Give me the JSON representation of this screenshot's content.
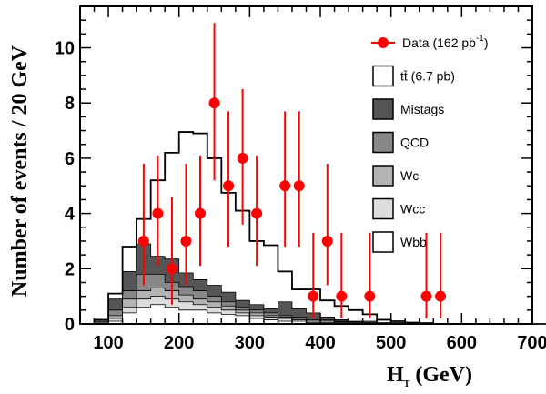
{
  "chart_data": {
    "type": "bar",
    "xlabel": "H",
    "xlabel_sub": "T",
    "xlabel_unit": " (GeV)",
    "ylabel": "Number of events / 20 GeV",
    "xlim": [
      60,
      700
    ],
    "ylim": [
      0,
      11.5
    ],
    "xticks": [
      100,
      200,
      300,
      400,
      500,
      600,
      700
    ],
    "yticks": [
      0,
      2,
      4,
      6,
      8,
      10
    ],
    "bin_width": 20,
    "legend_position": "top-right",
    "legend": [
      {
        "key": "data",
        "label": "Data (162 pb",
        "sup": "-1",
        "tail": ")"
      },
      {
        "key": "ttbar",
        "label": "tt̄ (6.7 pb)"
      },
      {
        "key": "mistags",
        "label": "Mistags"
      },
      {
        "key": "qcd",
        "label": "QCD"
      },
      {
        "key": "wc",
        "label": "Wc"
      },
      {
        "key": "wcc",
        "label": "Wcc"
      },
      {
        "key": "wbb",
        "label": "Wbb"
      }
    ],
    "colors": {
      "data": "#ff0000",
      "ttbar": "#ffffff",
      "mistags": "#555555",
      "qcd": "#888888",
      "wc": "#b3b3b3",
      "wcc": "#dddddd",
      "wbb": "#ffffff",
      "outline": "#000000"
    },
    "bin_edges_start": 80,
    "stacks": {
      "wbb": [
        0.0,
        0.1,
        0.4,
        0.6,
        0.7,
        0.6,
        0.5,
        0.5,
        0.4,
        0.35,
        0.3,
        0.2,
        0.15,
        0.1,
        0.1,
        0.05,
        0.05,
        0.05,
        0.0,
        0.0,
        0.0,
        0.0,
        0.0,
        0.0,
        0.0,
        0.0,
        0.0,
        0.0,
        0.0,
        0.0,
        0.0,
        0.0
      ],
      "wcc": [
        0.0,
        0.2,
        0.6,
        0.9,
        1.0,
        0.9,
        0.8,
        0.7,
        0.6,
        0.5,
        0.4,
        0.3,
        0.25,
        0.2,
        0.15,
        0.1,
        0.1,
        0.05,
        0.05,
        0.0,
        0.0,
        0.0,
        0.0,
        0.0,
        0.0,
        0.0,
        0.0,
        0.0,
        0.0,
        0.0,
        0.0,
        0.0
      ],
      "wc": [
        0.0,
        0.3,
        0.9,
        1.2,
        1.3,
        1.2,
        1.05,
        0.9,
        0.8,
        0.65,
        0.5,
        0.4,
        0.3,
        0.25,
        0.2,
        0.15,
        0.1,
        0.08,
        0.05,
        0.0,
        0.0,
        0.0,
        0.0,
        0.0,
        0.0,
        0.0,
        0.0,
        0.0,
        0.0,
        0.0,
        0.0,
        0.0
      ],
      "qcd": [
        0.0,
        0.5,
        1.2,
        1.8,
        1.8,
        1.5,
        1.35,
        1.2,
        1.0,
        0.8,
        0.6,
        0.5,
        0.4,
        0.3,
        0.25,
        0.2,
        0.15,
        0.1,
        0.08,
        0.05,
        0.0,
        0.0,
        0.0,
        0.0,
        0.0,
        0.0,
        0.0,
        0.0,
        0.0,
        0.0,
        0.0,
        0.0
      ],
      "mistags": [
        0.1,
        0.9,
        1.9,
        2.9,
        2.45,
        2.35,
        1.85,
        1.6,
        1.4,
        1.15,
        0.85,
        0.7,
        0.55,
        0.8,
        0.55,
        0.4,
        0.25,
        0.15,
        0.1,
        0.1,
        0.05,
        0.05,
        0.05,
        0.05,
        0.0,
        0.0,
        0.0,
        0.0,
        0.0,
        0.0,
        0.0,
        0.0
      ],
      "ttbar": [
        0.15,
        1.1,
        2.8,
        3.8,
        5.2,
        6.2,
        6.95,
        6.9,
        6.0,
        4.75,
        4.1,
        3.0,
        2.85,
        1.9,
        1.25,
        1.25,
        0.85,
        0.65,
        0.5,
        0.35,
        0.15,
        0.1,
        0.05,
        0.0,
        0.0,
        0.0,
        0.0,
        0.0,
        0.0,
        0.0,
        0.0,
        0.0
      ]
    },
    "data_points": [
      {
        "x": 150,
        "y": 3,
        "err_lo": 1.6,
        "err_hi": 2.8
      },
      {
        "x": 170,
        "y": 4,
        "err_lo": 1.9,
        "err_hi": 2.1
      },
      {
        "x": 190,
        "y": 2,
        "err_lo": 1.3,
        "err_hi": 2.6
      },
      {
        "x": 210,
        "y": 3,
        "err_lo": 1.6,
        "err_hi": 2.8
      },
      {
        "x": 230,
        "y": 4,
        "err_lo": 1.9,
        "err_hi": 2.1
      },
      {
        "x": 250,
        "y": 8,
        "err_lo": 2.8,
        "err_hi": 2.9
      },
      {
        "x": 270,
        "y": 5,
        "err_lo": 2.2,
        "err_hi": 2.7
      },
      {
        "x": 290,
        "y": 6,
        "err_lo": 2.4,
        "err_hi": 2.5
      },
      {
        "x": 310,
        "y": 4,
        "err_lo": 1.9,
        "err_hi": 2.1
      },
      {
        "x": 350,
        "y": 5,
        "err_lo": 2.2,
        "err_hi": 2.7
      },
      {
        "x": 370,
        "y": 5,
        "err_lo": 2.2,
        "err_hi": 2.7
      },
      {
        "x": 390,
        "y": 1,
        "err_lo": 0.8,
        "err_hi": 2.3
      },
      {
        "x": 410,
        "y": 3,
        "err_lo": 1.6,
        "err_hi": 2.8
      },
      {
        "x": 430,
        "y": 1,
        "err_lo": 0.8,
        "err_hi": 2.3
      },
      {
        "x": 470,
        "y": 1,
        "err_lo": 0.8,
        "err_hi": 2.3
      },
      {
        "x": 550,
        "y": 1,
        "err_lo": 0.8,
        "err_hi": 2.3
      },
      {
        "x": 570,
        "y": 1,
        "err_lo": 0.8,
        "err_hi": 2.3
      }
    ]
  }
}
